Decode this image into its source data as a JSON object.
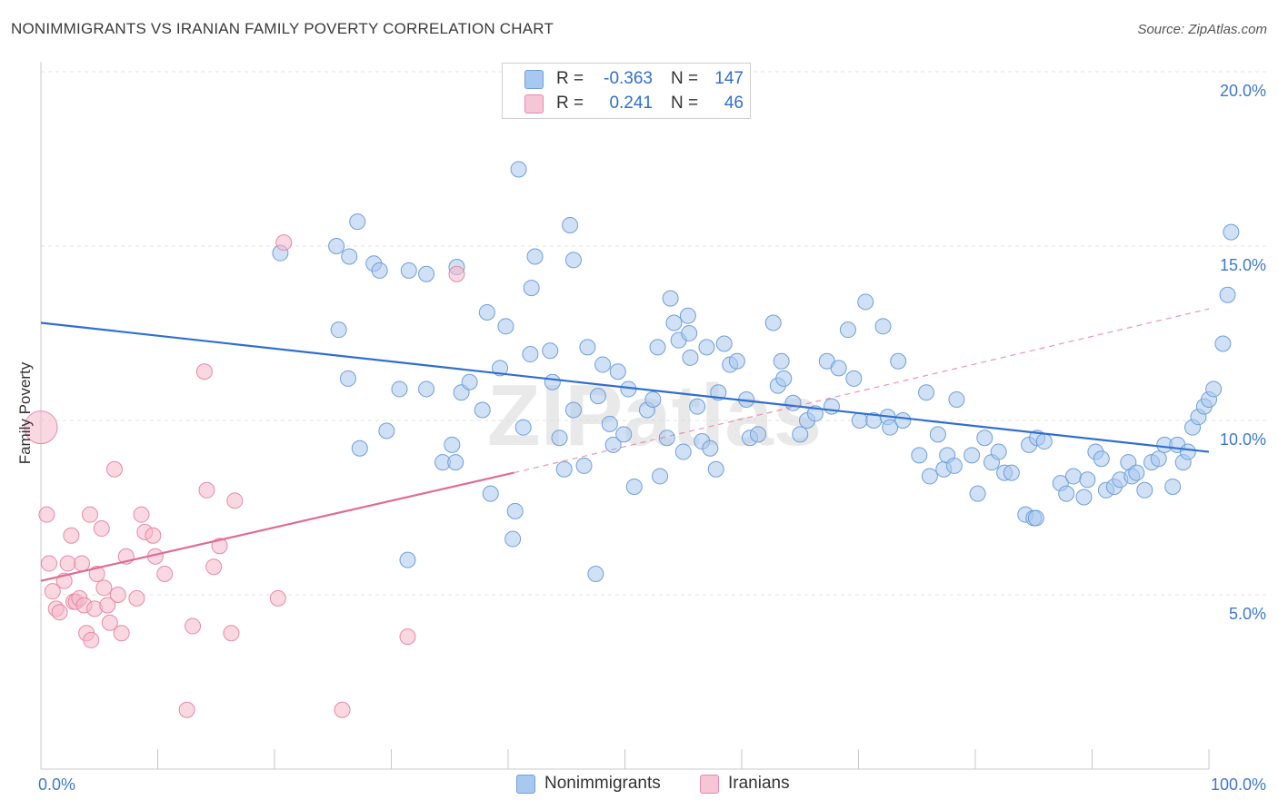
{
  "header": {
    "title": "NONIMMIGRANTS VS IRANIAN FAMILY POVERTY CORRELATION CHART",
    "source": "Source: ZipAtlas.com"
  },
  "legend_top": {
    "rows": [
      {
        "r_label": "R =",
        "r_value": "-0.363",
        "n_label": "N =",
        "n_value": "147"
      },
      {
        "r_label": "R =",
        "r_value": "0.241",
        "n_label": "N =",
        "n_value": "46"
      }
    ]
  },
  "legend_bottom": {
    "items": [
      {
        "label": "Nonimmigrants"
      },
      {
        "label": "Iranians"
      }
    ]
  },
  "colors": {
    "blue_fill": "#a9c8ef",
    "blue_stroke": "#6f9fdc",
    "blue_line": "#2f6fd0",
    "pink_fill": "#f5b8cb",
    "pink_stroke": "#e58aa8",
    "pink_line": "#e06b93",
    "axis_label": "#3e78cf"
  },
  "chart_data": {
    "type": "scatter",
    "title": "NONIMMIGRANTS VS IRANIAN FAMILY POVERTY CORRELATION CHART",
    "xlabel": "",
    "ylabel": "Family Poverty",
    "x_tick_labels": [
      "0.0%",
      "100.0%"
    ],
    "y_tick_labels": [
      "5.0%",
      "10.0%",
      "15.0%",
      "20.0%"
    ],
    "xlim": [
      0,
      100
    ],
    "ylim": [
      0,
      20
    ],
    "y_ticks": [
      5,
      10,
      15,
      20
    ],
    "grid": true,
    "legend_position": "top-center",
    "watermark": "ZIPatlas",
    "series": [
      {
        "name": "Nonimmigrants",
        "R": -0.363,
        "N": 147,
        "trend": {
          "x0": 0,
          "y0": 12.8,
          "x1": 100,
          "y1": 9.1
        },
        "points": [
          [
            20.5,
            14.8
          ],
          [
            25.3,
            15.0
          ],
          [
            26.4,
            14.7
          ],
          [
            27.1,
            15.7
          ],
          [
            28.5,
            14.5
          ],
          [
            29.0,
            14.3
          ],
          [
            31.5,
            14.3
          ],
          [
            33.0,
            14.2
          ],
          [
            35.6,
            14.4
          ],
          [
            38.2,
            13.1
          ],
          [
            40.9,
            17.2
          ],
          [
            42.3,
            14.7
          ],
          [
            45.3,
            15.6
          ],
          [
            45.6,
            14.6
          ],
          [
            25.5,
            12.6
          ],
          [
            26.3,
            11.2
          ],
          [
            27.3,
            9.2
          ],
          [
            29.6,
            9.7
          ],
          [
            30.7,
            10.9
          ],
          [
            31.4,
            6.0
          ],
          [
            33.0,
            10.9
          ],
          [
            34.4,
            8.8
          ],
          [
            35.2,
            9.3
          ],
          [
            35.5,
            8.8
          ],
          [
            36.0,
            10.8
          ],
          [
            36.7,
            11.1
          ],
          [
            37.8,
            10.3
          ],
          [
            38.5,
            7.9
          ],
          [
            39.3,
            11.5
          ],
          [
            39.8,
            12.7
          ],
          [
            40.4,
            6.6
          ],
          [
            40.6,
            7.4
          ],
          [
            41.3,
            9.8
          ],
          [
            41.9,
            11.9
          ],
          [
            42.0,
            13.8
          ],
          [
            43.6,
            12.0
          ],
          [
            43.8,
            11.1
          ],
          [
            44.4,
            9.5
          ],
          [
            44.8,
            8.6
          ],
          [
            45.6,
            10.3
          ],
          [
            46.5,
            8.7
          ],
          [
            46.8,
            12.1
          ],
          [
            47.5,
            5.6
          ],
          [
            47.7,
            10.7
          ],
          [
            48.1,
            11.6
          ],
          [
            48.7,
            9.9
          ],
          [
            49.0,
            9.3
          ],
          [
            49.4,
            11.4
          ],
          [
            49.9,
            9.6
          ],
          [
            50.3,
            10.9
          ],
          [
            50.8,
            8.1
          ],
          [
            51.9,
            10.3
          ],
          [
            52.4,
            10.6
          ],
          [
            52.8,
            12.1
          ],
          [
            53.0,
            8.4
          ],
          [
            53.6,
            9.5
          ],
          [
            53.9,
            13.5
          ],
          [
            54.2,
            12.8
          ],
          [
            54.6,
            12.3
          ],
          [
            55.0,
            9.1
          ],
          [
            55.4,
            13.0
          ],
          [
            55.5,
            12.5
          ],
          [
            55.6,
            11.8
          ],
          [
            56.2,
            10.4
          ],
          [
            56.6,
            9.4
          ],
          [
            57.0,
            12.1
          ],
          [
            57.3,
            9.2
          ],
          [
            57.8,
            8.6
          ],
          [
            58.0,
            10.8
          ],
          [
            58.5,
            12.2
          ],
          [
            59.0,
            11.6
          ],
          [
            59.6,
            11.7
          ],
          [
            60.4,
            10.6
          ],
          [
            60.7,
            9.5
          ],
          [
            61.4,
            9.6
          ],
          [
            62.7,
            12.8
          ],
          [
            63.1,
            11.0
          ],
          [
            63.4,
            11.7
          ],
          [
            63.6,
            11.2
          ],
          [
            64.4,
            10.5
          ],
          [
            65.0,
            9.6
          ],
          [
            65.6,
            10.0
          ],
          [
            66.3,
            10.2
          ],
          [
            67.3,
            11.7
          ],
          [
            67.7,
            10.4
          ],
          [
            68.3,
            11.5
          ],
          [
            69.1,
            12.6
          ],
          [
            69.6,
            11.2
          ],
          [
            70.1,
            10.0
          ],
          [
            70.6,
            13.4
          ],
          [
            71.3,
            10.0
          ],
          [
            72.1,
            12.7
          ],
          [
            72.5,
            10.1
          ],
          [
            72.7,
            9.8
          ],
          [
            73.4,
            11.7
          ],
          [
            73.8,
            10.0
          ],
          [
            75.2,
            9.0
          ],
          [
            75.8,
            10.8
          ],
          [
            76.1,
            8.4
          ],
          [
            76.8,
            9.6
          ],
          [
            77.3,
            8.6
          ],
          [
            77.6,
            9.0
          ],
          [
            78.2,
            8.7
          ],
          [
            78.4,
            10.6
          ],
          [
            79.7,
            9.0
          ],
          [
            80.2,
            7.9
          ],
          [
            80.8,
            9.5
          ],
          [
            81.4,
            8.8
          ],
          [
            82.0,
            9.1
          ],
          [
            82.5,
            8.5
          ],
          [
            83.1,
            8.5
          ],
          [
            84.3,
            7.3
          ],
          [
            84.6,
            9.3
          ],
          [
            85.0,
            7.2
          ],
          [
            85.2,
            7.2
          ],
          [
            85.3,
            9.5
          ],
          [
            85.9,
            9.4
          ],
          [
            87.3,
            8.2
          ],
          [
            87.8,
            7.9
          ],
          [
            88.4,
            8.4
          ],
          [
            89.3,
            7.8
          ],
          [
            89.6,
            8.3
          ],
          [
            90.3,
            9.1
          ],
          [
            90.8,
            8.9
          ],
          [
            91.2,
            8.0
          ],
          [
            91.9,
            8.1
          ],
          [
            92.4,
            8.3
          ],
          [
            93.1,
            8.8
          ],
          [
            93.4,
            8.4
          ],
          [
            93.8,
            8.5
          ],
          [
            94.5,
            8.0
          ],
          [
            95.1,
            8.8
          ],
          [
            95.7,
            8.9
          ],
          [
            96.2,
            9.3
          ],
          [
            96.9,
            8.1
          ],
          [
            97.3,
            9.3
          ],
          [
            97.8,
            8.8
          ],
          [
            98.2,
            9.1
          ],
          [
            98.6,
            9.8
          ],
          [
            99.1,
            10.1
          ],
          [
            99.6,
            10.4
          ],
          [
            100.0,
            10.6
          ],
          [
            100.4,
            10.9
          ],
          [
            101.2,
            12.2
          ],
          [
            101.6,
            13.6
          ],
          [
            101.9,
            15.4
          ]
        ]
      },
      {
        "name": "Iranians",
        "R": 0.241,
        "N": 46,
        "trend": {
          "x0": 0,
          "y0": 5.4,
          "x1": 40.5,
          "y1": 8.5
        },
        "trend_extension": {
          "x0": 40.5,
          "y0": 8.5,
          "x1": 100,
          "y1": 13.2
        },
        "points": [
          [
            0,
            9.8
          ],
          [
            0.5,
            7.3
          ],
          [
            0.7,
            5.9
          ],
          [
            1.0,
            5.1
          ],
          [
            1.3,
            4.6
          ],
          [
            1.6,
            4.5
          ],
          [
            2.0,
            5.4
          ],
          [
            2.3,
            5.9
          ],
          [
            2.6,
            6.7
          ],
          [
            2.8,
            4.8
          ],
          [
            3.0,
            4.8
          ],
          [
            3.3,
            4.9
          ],
          [
            3.5,
            5.9
          ],
          [
            3.7,
            4.7
          ],
          [
            3.9,
            3.9
          ],
          [
            4.2,
            7.3
          ],
          [
            4.3,
            3.7
          ],
          [
            4.6,
            4.6
          ],
          [
            4.8,
            5.6
          ],
          [
            5.2,
            6.9
          ],
          [
            5.4,
            5.2
          ],
          [
            5.7,
            4.7
          ],
          [
            5.9,
            4.2
          ],
          [
            6.3,
            8.6
          ],
          [
            6.6,
            5.0
          ],
          [
            6.9,
            3.9
          ],
          [
            7.3,
            6.1
          ],
          [
            8.2,
            4.9
          ],
          [
            8.6,
            7.3
          ],
          [
            8.9,
            6.8
          ],
          [
            9.6,
            6.7
          ],
          [
            9.8,
            6.1
          ],
          [
            10.6,
            5.6
          ],
          [
            12.5,
            1.7
          ],
          [
            13.0,
            4.1
          ],
          [
            14.0,
            11.4
          ],
          [
            14.2,
            8.0
          ],
          [
            14.8,
            5.8
          ],
          [
            15.3,
            6.4
          ],
          [
            16.3,
            3.9
          ],
          [
            16.6,
            7.7
          ],
          [
            20.3,
            4.9
          ],
          [
            20.8,
            15.1
          ],
          [
            25.8,
            1.7
          ],
          [
            31.4,
            3.8
          ],
          [
            35.6,
            14.2
          ]
        ]
      }
    ]
  }
}
